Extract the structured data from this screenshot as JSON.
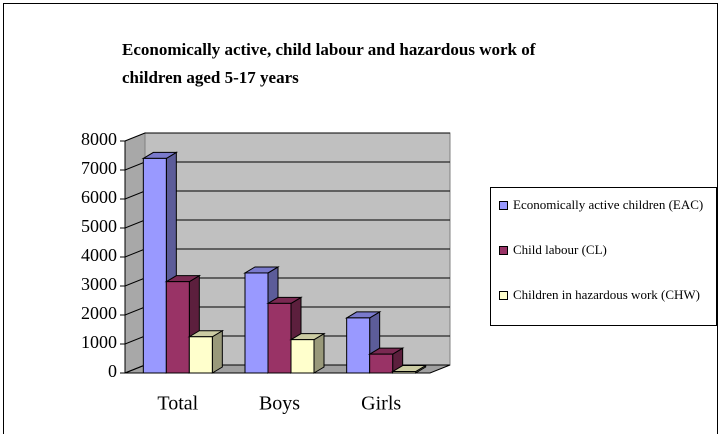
{
  "chart_data": {
    "type": "bar3d",
    "title": "Economically active, child labour and hazardous work of children aged 5-17 years",
    "categories": [
      "Total",
      "Boys",
      "Girls"
    ],
    "series": [
      {
        "name": "Economically active children (EAC)",
        "color": "#9999ff",
        "values": [
          7400,
          3450,
          1900
        ]
      },
      {
        "name": "Child labour (CL)",
        "color": "#993366",
        "values": [
          3150,
          2400,
          650
        ]
      },
      {
        "name": "Children in hazardous work (CHW)",
        "color": "#ffffcc",
        "values": [
          1250,
          1150,
          50
        ]
      }
    ],
    "ylim": [
      0,
      8000
    ],
    "yticks": [
      0,
      1000,
      2000,
      3000,
      4000,
      5000,
      6000,
      7000,
      8000
    ],
    "grid": true,
    "legend": "right"
  }
}
